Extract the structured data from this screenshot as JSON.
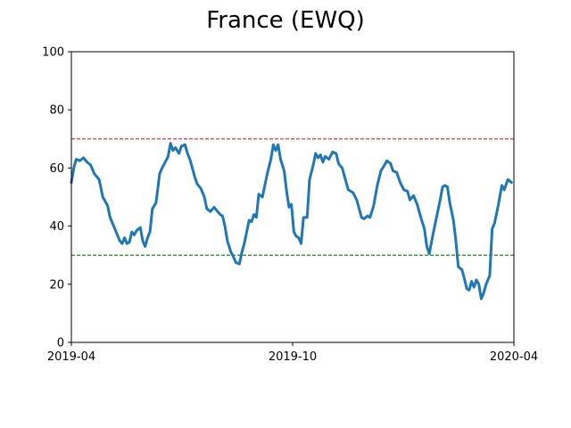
{
  "chart_data": {
    "type": "line",
    "title": "France (EWQ)",
    "xlabel": "",
    "ylabel": "",
    "x_range": [
      "2019-04-01",
      "2020-04-01"
    ],
    "ylim": [
      0,
      100
    ],
    "x_ticks": [
      {
        "date": "2019-04-01",
        "label": "2019-04"
      },
      {
        "date": "2019-10-01",
        "label": "2019-10"
      },
      {
        "date": "2020-04-01",
        "label": "2020-04"
      }
    ],
    "y_ticks": [
      0,
      20,
      40,
      60,
      80,
      100
    ],
    "grid": false,
    "reference_lines": [
      {
        "y": 70,
        "color": "#d62728",
        "style": "dashed"
      },
      {
        "y": 30,
        "color": "#008000",
        "style": "dashed"
      }
    ],
    "series": [
      {
        "color": "#1f77b4",
        "points": [
          [
            "2019-04-01",
            55
          ],
          [
            "2019-04-03",
            60
          ],
          [
            "2019-04-05",
            63
          ],
          [
            "2019-04-08",
            62.5
          ],
          [
            "2019-04-11",
            63.5
          ],
          [
            "2019-04-14",
            62
          ],
          [
            "2019-04-17",
            61
          ],
          [
            "2019-04-20",
            58
          ],
          [
            "2019-04-24",
            56
          ],
          [
            "2019-04-27",
            50
          ],
          [
            "2019-05-01",
            47
          ],
          [
            "2019-05-03",
            43
          ],
          [
            "2019-05-07",
            39
          ],
          [
            "2019-05-11",
            35
          ],
          [
            "2019-05-13",
            34
          ],
          [
            "2019-05-15",
            36
          ],
          [
            "2019-05-17",
            34
          ],
          [
            "2019-05-19",
            34.5
          ],
          [
            "2019-05-21",
            38
          ],
          [
            "2019-05-23",
            37
          ],
          [
            "2019-05-25",
            38.5
          ],
          [
            "2019-05-28",
            39.5
          ],
          [
            "2019-05-30",
            35
          ],
          [
            "2019-06-01",
            33
          ],
          [
            "2019-06-03",
            36
          ],
          [
            "2019-06-05",
            38
          ],
          [
            "2019-06-07",
            46
          ],
          [
            "2019-06-10",
            48
          ],
          [
            "2019-06-13",
            58
          ],
          [
            "2019-06-15",
            60
          ],
          [
            "2019-06-17",
            61.5
          ],
          [
            "2019-06-20",
            64
          ],
          [
            "2019-06-22",
            68.5
          ],
          [
            "2019-06-24",
            66
          ],
          [
            "2019-06-26",
            67
          ],
          [
            "2019-06-29",
            65
          ],
          [
            "2019-07-01",
            67.5
          ],
          [
            "2019-07-04",
            68
          ],
          [
            "2019-07-06",
            65
          ],
          [
            "2019-07-08",
            63
          ],
          [
            "2019-07-10",
            60
          ],
          [
            "2019-07-12",
            57
          ],
          [
            "2019-07-14",
            54.5
          ],
          [
            "2019-07-17",
            53
          ],
          [
            "2019-07-20",
            50
          ],
          [
            "2019-07-22",
            46
          ],
          [
            "2019-07-25",
            45
          ],
          [
            "2019-07-28",
            46.5
          ],
          [
            "2019-07-31",
            45
          ],
          [
            "2019-08-02",
            44
          ],
          [
            "2019-08-04",
            43.5
          ],
          [
            "2019-08-06",
            40
          ],
          [
            "2019-08-08",
            35
          ],
          [
            "2019-08-11",
            31
          ],
          [
            "2019-08-13",
            29.5
          ],
          [
            "2019-08-15",
            27.5
          ],
          [
            "2019-08-18",
            27
          ],
          [
            "2019-08-20",
            31
          ],
          [
            "2019-08-22",
            34
          ],
          [
            "2019-08-24",
            38
          ],
          [
            "2019-08-26",
            42
          ],
          [
            "2019-08-28",
            41.5
          ],
          [
            "2019-08-30",
            44
          ],
          [
            "2019-09-01",
            43
          ],
          [
            "2019-09-03",
            51
          ],
          [
            "2019-09-06",
            50
          ],
          [
            "2019-09-08",
            54
          ],
          [
            "2019-09-10",
            58
          ],
          [
            "2019-09-13",
            63
          ],
          [
            "2019-09-15",
            68
          ],
          [
            "2019-09-17",
            66
          ],
          [
            "2019-09-19",
            68
          ],
          [
            "2019-09-21",
            63
          ],
          [
            "2019-09-24",
            59
          ],
          [
            "2019-09-26",
            52
          ],
          [
            "2019-09-28",
            46.5
          ],
          [
            "2019-09-30",
            47.5
          ],
          [
            "2019-10-02",
            38
          ],
          [
            "2019-10-04",
            36.5
          ],
          [
            "2019-10-06",
            36
          ],
          [
            "2019-10-08",
            34
          ],
          [
            "2019-10-10",
            43
          ],
          [
            "2019-10-13",
            43
          ],
          [
            "2019-10-15",
            56
          ],
          [
            "2019-10-18",
            61
          ],
          [
            "2019-10-20",
            65
          ],
          [
            "2019-10-22",
            63.5
          ],
          [
            "2019-10-24",
            64.5
          ],
          [
            "2019-10-26",
            62
          ],
          [
            "2019-10-28",
            64
          ],
          [
            "2019-10-31",
            63
          ],
          [
            "2019-11-03",
            65.5
          ],
          [
            "2019-11-06",
            65
          ],
          [
            "2019-11-08",
            61.5
          ],
          [
            "2019-11-11",
            60
          ],
          [
            "2019-11-13",
            57
          ],
          [
            "2019-11-16",
            52.5
          ],
          [
            "2019-11-20",
            51.5
          ],
          [
            "2019-11-23",
            49
          ],
          [
            "2019-11-27",
            43
          ],
          [
            "2019-11-29",
            42.5
          ],
          [
            "2019-12-02",
            43.5
          ],
          [
            "2019-12-04",
            43
          ],
          [
            "2019-12-07",
            47
          ],
          [
            "2019-12-10",
            54
          ],
          [
            "2019-12-13",
            59
          ],
          [
            "2019-12-16",
            61
          ],
          [
            "2019-12-18",
            62.5
          ],
          [
            "2019-12-21",
            61.5
          ],
          [
            "2019-12-23",
            59
          ],
          [
            "2019-12-26",
            58.5
          ],
          [
            "2019-12-29",
            55
          ],
          [
            "2020-01-01",
            52.5
          ],
          [
            "2020-01-04",
            52
          ],
          [
            "2020-01-06",
            49
          ],
          [
            "2020-01-09",
            50.5
          ],
          [
            "2020-01-12",
            47.5
          ],
          [
            "2020-01-15",
            43
          ],
          [
            "2020-01-18",
            39
          ],
          [
            "2020-01-20",
            33
          ],
          [
            "2020-01-22",
            30.5
          ],
          [
            "2020-01-25",
            37
          ],
          [
            "2020-01-28",
            43
          ],
          [
            "2020-01-31",
            49
          ],
          [
            "2020-02-02",
            53.5
          ],
          [
            "2020-02-04",
            54
          ],
          [
            "2020-02-06",
            53.5
          ],
          [
            "2020-02-08",
            48
          ],
          [
            "2020-02-11",
            42
          ],
          [
            "2020-02-13",
            35
          ],
          [
            "2020-02-15",
            26
          ],
          [
            "2020-02-18",
            25
          ],
          [
            "2020-02-20",
            22
          ],
          [
            "2020-02-22",
            18.5
          ],
          [
            "2020-02-24",
            18
          ],
          [
            "2020-02-26",
            21
          ],
          [
            "2020-02-28",
            19
          ],
          [
            "2020-03-01",
            21.5
          ],
          [
            "2020-03-03",
            20
          ],
          [
            "2020-03-05",
            15
          ],
          [
            "2020-03-07",
            17
          ],
          [
            "2020-03-09",
            20
          ],
          [
            "2020-03-12",
            23
          ],
          [
            "2020-03-14",
            39
          ],
          [
            "2020-03-16",
            41
          ],
          [
            "2020-03-19",
            47
          ],
          [
            "2020-03-22",
            54
          ],
          [
            "2020-03-24",
            52.5
          ],
          [
            "2020-03-27",
            56
          ],
          [
            "2020-03-30",
            55
          ]
        ]
      }
    ]
  }
}
